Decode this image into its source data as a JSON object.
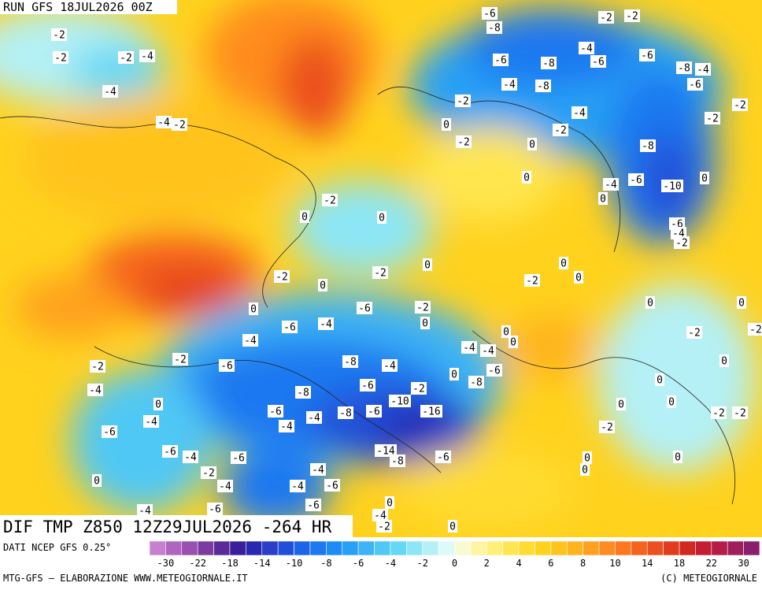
{
  "header": {
    "run": "RUN GFS 18JUL2026 00Z"
  },
  "map": {
    "title": "DIF TMP Z850 12Z29JUL2026 -264 HR",
    "contour_labels": [
      -2,
      -2,
      -2,
      -4,
      -4,
      -2,
      -4,
      -6,
      -8,
      -2,
      -2,
      -6,
      -8,
      -4,
      -6,
      -6,
      -8,
      -4,
      -6,
      -4,
      -8,
      -2,
      -4,
      -2,
      0,
      -2,
      -2,
      -2,
      0,
      -8,
      0,
      0,
      -6,
      -10,
      -4,
      0,
      -2,
      0,
      0,
      -6,
      -4,
      -2,
      0,
      -2,
      -2,
      0,
      -2,
      0,
      0,
      0,
      0,
      0,
      -6,
      -2,
      -4,
      -6,
      0,
      -4,
      0,
      0,
      -4,
      -4,
      -2,
      -2,
      -2,
      -6,
      -8,
      -4,
      -6,
      -2,
      0,
      0,
      0,
      -4,
      -8,
      -6,
      -8,
      -2,
      -10,
      -16,
      0,
      0,
      0,
      -2,
      -2,
      -6,
      -4,
      -8,
      -6,
      -4,
      -4,
      -6,
      -2,
      -14,
      -8,
      -6,
      -6,
      -4,
      -6,
      0,
      0,
      0,
      0,
      -2,
      -4,
      -4,
      -4,
      -6,
      -4,
      -6,
      -6,
      0,
      -2,
      0,
      -4
    ]
  },
  "legend": {
    "source": "DATI NCEP GFS 0.25°",
    "colors": [
      "#c87fd0",
      "#b066c0",
      "#9950b0",
      "#7d3aa0",
      "#5a2a98",
      "#3a1f9a",
      "#2828b0",
      "#2a3ec8",
      "#2050d8",
      "#1e64e6",
      "#1e78f0",
      "#1e8cf5",
      "#28a0f5",
      "#3cb4f5",
      "#50c8f5",
      "#64d8f5",
      "#8ce6f5",
      "#b4f0f5",
      "#dcfaf8",
      "#fafad2",
      "#fff5a0",
      "#fff078",
      "#ffe650",
      "#ffdc32",
      "#ffd21e",
      "#ffc31e",
      "#ffb41e",
      "#ffa01e",
      "#ff8c1e",
      "#ff781e",
      "#f5641e",
      "#eb501e",
      "#e13c1e",
      "#d2281e",
      "#c31e32",
      "#b41e46",
      "#a01e5a",
      "#8c1e6e"
    ],
    "ticks": [
      -30,
      -22,
      -18,
      -14,
      -10,
      -8,
      -6,
      -4,
      -2,
      0,
      2,
      4,
      6,
      8,
      10,
      14,
      18,
      22,
      30
    ]
  },
  "footer": {
    "left": "MTG-GFS — ELABORAZIONE WWW.METEOGIORNALE.IT",
    "right": "(C) METEOGIORNALE"
  }
}
